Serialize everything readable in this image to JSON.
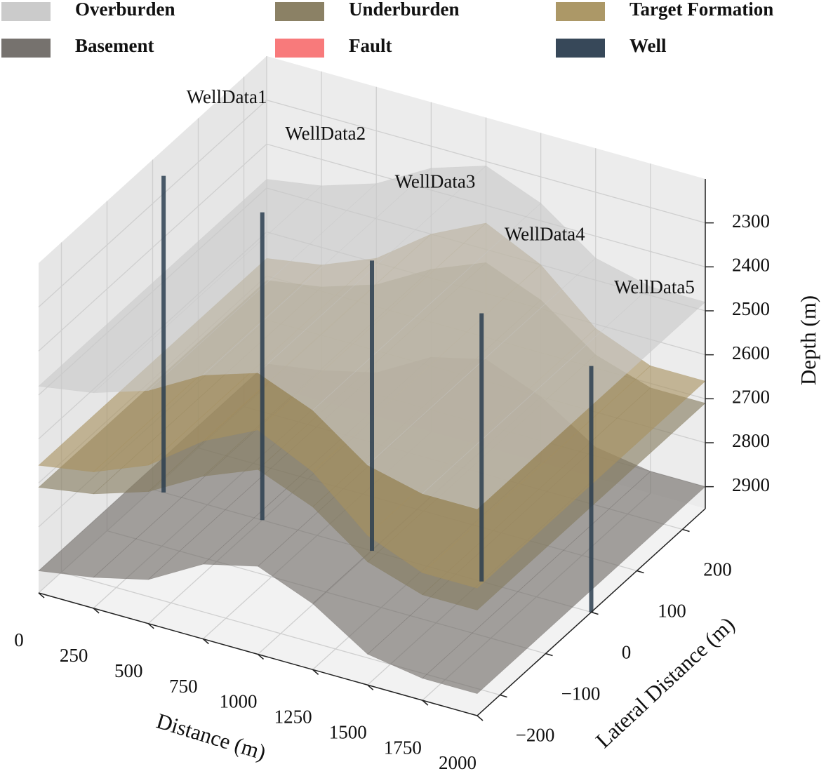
{
  "chart_data": {
    "type": "surface3d",
    "xlabel": "Distance (m)",
    "ylabel": "Lateral Distance (m)",
    "zlabel": "Depth (m)",
    "xlim": [
      0,
      2000
    ],
    "ylim": [
      -250,
      250
    ],
    "zlim": [
      2200,
      2950
    ],
    "z_inverted": true,
    "grid": true,
    "xticks": [
      0,
      250,
      500,
      750,
      1000,
      1250,
      1500,
      1750,
      2000
    ],
    "yticks": [
      {
        "value": -200,
        "label": "−200"
      },
      {
        "value": -100,
        "label": "−100"
      },
      0,
      100,
      200
    ],
    "zticks": [
      2300,
      2400,
      2500,
      2600,
      2700,
      2800,
      2900
    ],
    "x": [
      0,
      250,
      500,
      750,
      1000,
      1250,
      1500,
      1750,
      2000
    ],
    "series": [
      {
        "name": "Overburden",
        "color": "#c8c8c8",
        "values": [
          2480,
          2460,
          2420,
          2350,
          2310,
          2360,
          2450,
          2480,
          2480
        ]
      },
      {
        "name": "Underburden",
        "color": "#857a5d",
        "values": [
          2710,
          2690,
          2650,
          2580,
          2530,
          2580,
          2670,
          2710,
          2710
        ]
      },
      {
        "name": "Target Formation",
        "color": "#a8925f",
        "values": [
          2660,
          2640,
          2590,
          2500,
          2440,
          2500,
          2610,
          2660,
          2660
        ]
      },
      {
        "name": "Basement",
        "color": "#6f6a66",
        "values": [
          2900,
          2880,
          2850,
          2780,
          2750,
          2800,
          2880,
          2900,
          2900
        ]
      }
    ],
    "fault": {
      "name": "Fault",
      "color": "#f87374"
    },
    "wells": {
      "name": "Well",
      "color": "#2c3e50",
      "labels": [
        "WellData1",
        "WellData2",
        "WellData3",
        "WellData4",
        "WellData5"
      ],
      "x": [
        50,
        500,
        1000,
        1500,
        2000
      ],
      "y": [
        0,
        0,
        0,
        0,
        0
      ],
      "top": [
        2230,
        2250,
        2290,
        2340,
        2390
      ],
      "bottom": [
        2950,
        2950,
        2950,
        2950,
        2950
      ]
    }
  }
}
